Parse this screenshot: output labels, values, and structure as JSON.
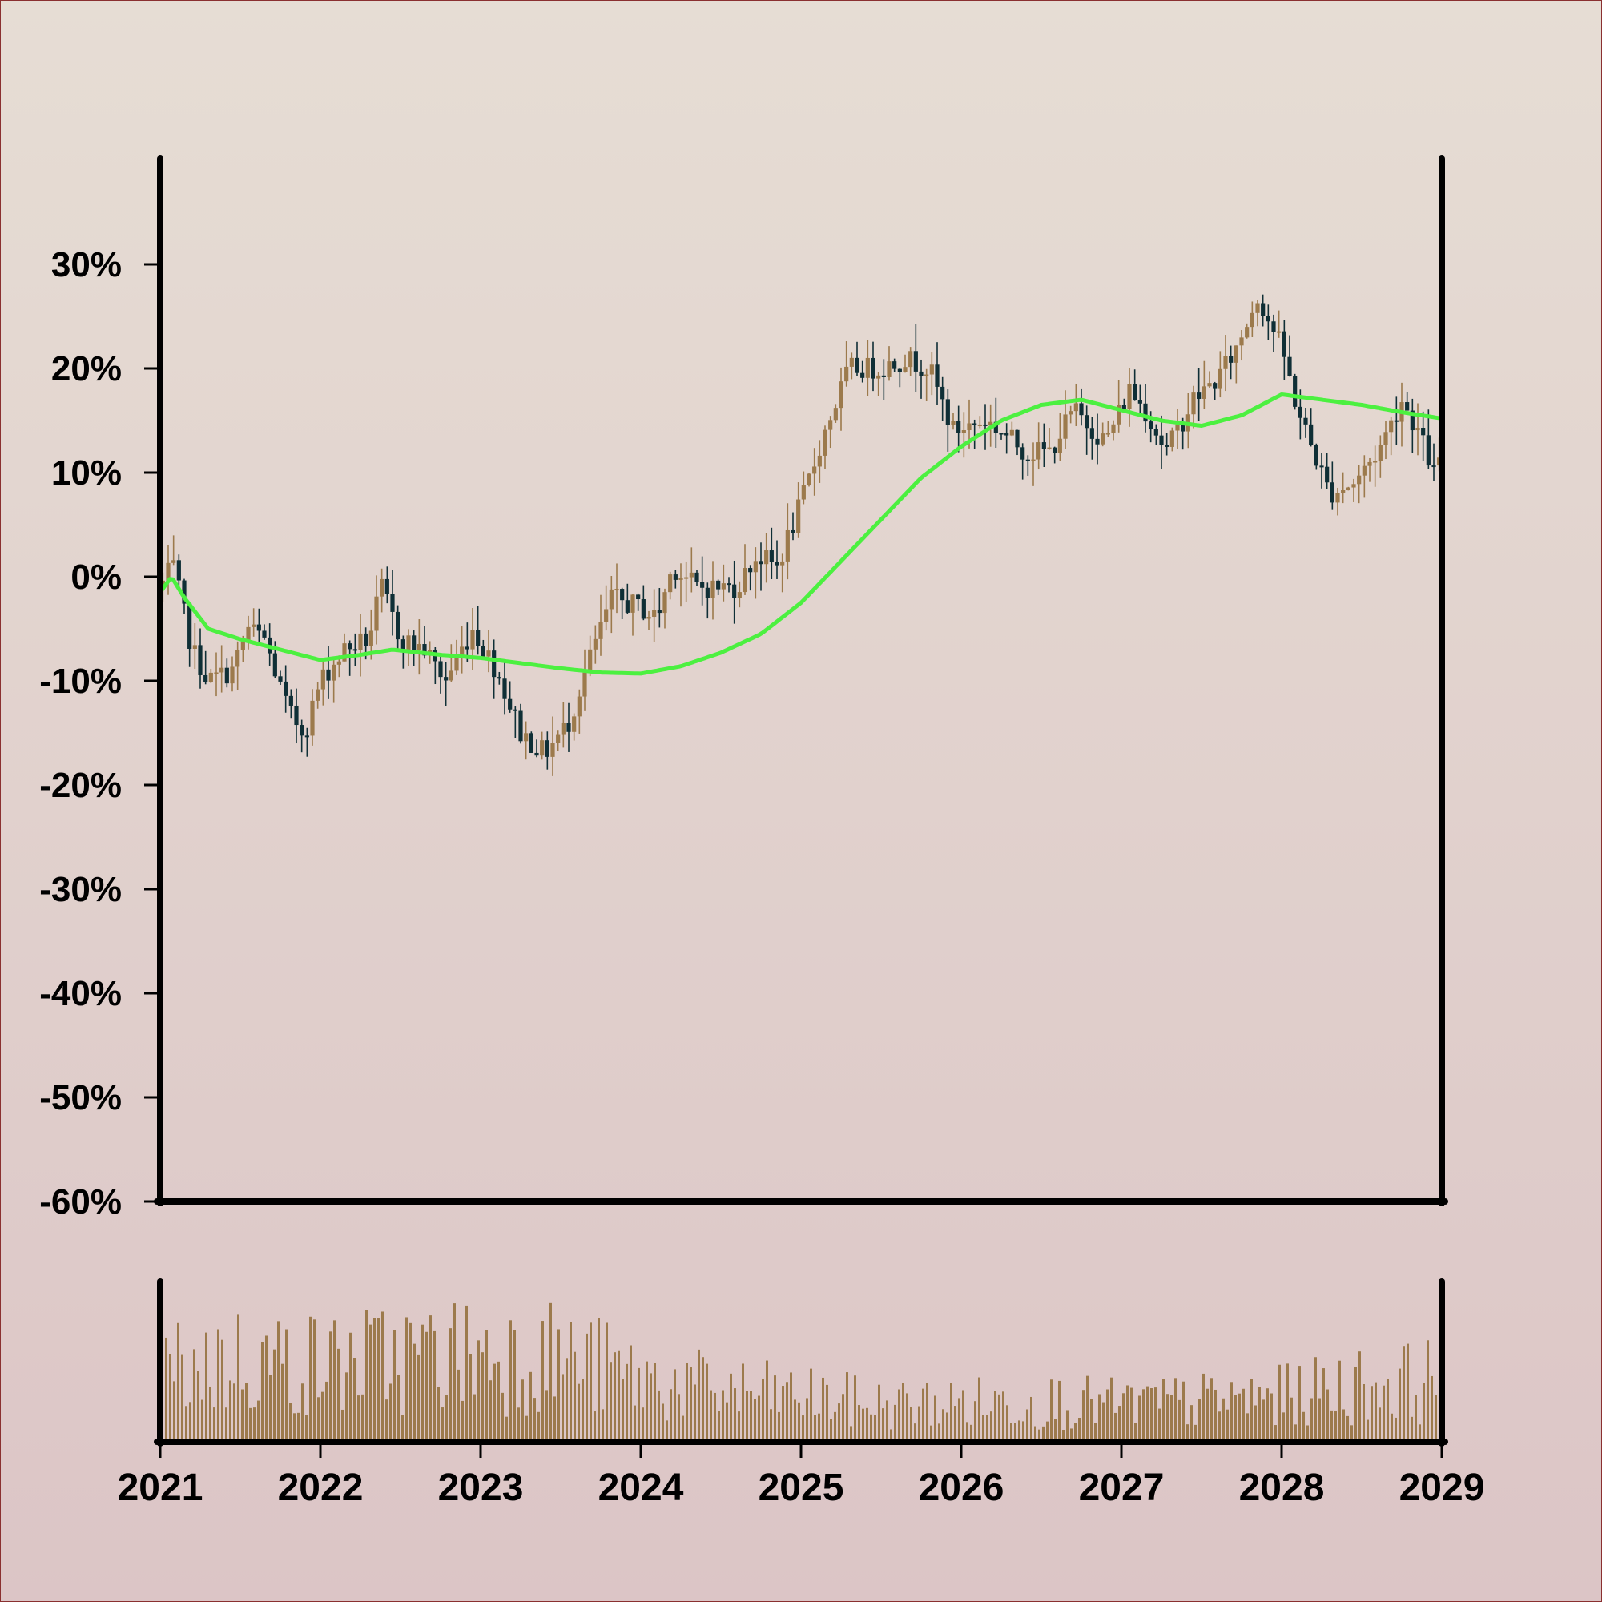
{
  "chart_data": [
    {
      "type": "candlestick",
      "panel": "price",
      "yticks": [
        "30%",
        "20%",
        "10%",
        "0%",
        "-10%",
        "-20%",
        "-30%",
        "-40%",
        "-50%",
        "-60%"
      ],
      "ytick_values": [
        30,
        20,
        10,
        0,
        -10,
        -20,
        -30,
        -40,
        -50,
        -60
      ],
      "ylim": [
        -60,
        40
      ],
      "xlim": [
        2021,
        2029
      ],
      "colors": {
        "up": "#9c7a4c",
        "down": "#0f2f36",
        "ma": "#4cf040",
        "axis": "#000000"
      },
      "close_path": [
        [
          2021.0,
          -1
        ],
        [
          2021.08,
          1
        ],
        [
          2021.2,
          -7
        ],
        [
          2021.3,
          -10
        ],
        [
          2021.45,
          -9
        ],
        [
          2021.55,
          -5
        ],
        [
          2021.65,
          -6
        ],
        [
          2021.8,
          -13
        ],
        [
          2021.9,
          -15
        ],
        [
          2022.0,
          -10
        ],
        [
          2022.15,
          -7
        ],
        [
          2022.3,
          -6
        ],
        [
          2022.38,
          -1
        ],
        [
          2022.5,
          -6
        ],
        [
          2022.65,
          -7
        ],
        [
          2022.78,
          -10
        ],
        [
          2022.95,
          -5
        ],
        [
          2023.1,
          -9
        ],
        [
          2023.25,
          -15
        ],
        [
          2023.4,
          -17
        ],
        [
          2023.55,
          -14
        ],
        [
          2023.7,
          -7
        ],
        [
          2023.82,
          -2
        ],
        [
          2024.0,
          -3
        ],
        [
          2024.1,
          -4
        ],
        [
          2024.2,
          1
        ],
        [
          2024.35,
          -1
        ],
        [
          2024.6,
          -1
        ],
        [
          2024.72,
          2
        ],
        [
          2024.85,
          1
        ],
        [
          2025.0,
          7
        ],
        [
          2025.15,
          14
        ],
        [
          2025.3,
          20
        ],
        [
          2025.5,
          20
        ],
        [
          2025.65,
          21
        ],
        [
          2025.8,
          20
        ],
        [
          2025.95,
          14
        ],
        [
          2026.15,
          15
        ],
        [
          2026.25,
          14
        ],
        [
          2026.4,
          12
        ],
        [
          2026.55,
          12
        ],
        [
          2026.7,
          16
        ],
        [
          2026.9,
          13
        ],
        [
          2027.05,
          18
        ],
        [
          2027.15,
          16
        ],
        [
          2027.28,
          12
        ],
        [
          2027.45,
          17
        ],
        [
          2027.6,
          19
        ],
        [
          2027.72,
          22
        ],
        [
          2027.85,
          27
        ],
        [
          2028.0,
          22
        ],
        [
          2028.1,
          16
        ],
        [
          2028.2,
          12
        ],
        [
          2028.3,
          8
        ],
        [
          2028.45,
          9
        ],
        [
          2028.6,
          12
        ],
        [
          2028.75,
          17
        ],
        [
          2028.85,
          14
        ],
        [
          2028.95,
          10
        ],
        [
          2029.0,
          11
        ]
      ],
      "ma_path": [
        [
          2021.0,
          -1.5
        ],
        [
          2021.07,
          0
        ],
        [
          2021.15,
          -2
        ],
        [
          2021.3,
          -5
        ],
        [
          2021.5,
          -6
        ],
        [
          2021.75,
          -7
        ],
        [
          2022.0,
          -8
        ],
        [
          2022.25,
          -7.5
        ],
        [
          2022.45,
          -7
        ],
        [
          2022.75,
          -7.5
        ],
        [
          2023.0,
          -7.8
        ],
        [
          2023.25,
          -8.3
        ],
        [
          2023.5,
          -8.8
        ],
        [
          2023.75,
          -9.2
        ],
        [
          2024.0,
          -9.3
        ],
        [
          2024.25,
          -8.6
        ],
        [
          2024.5,
          -7.3
        ],
        [
          2024.75,
          -5.5
        ],
        [
          2025.0,
          -2.5
        ],
        [
          2025.25,
          1.5
        ],
        [
          2025.5,
          5.5
        ],
        [
          2025.75,
          9.5
        ],
        [
          2026.0,
          12.5
        ],
        [
          2026.25,
          15
        ],
        [
          2026.5,
          16.5
        ],
        [
          2026.75,
          17
        ],
        [
          2027.0,
          16
        ],
        [
          2027.25,
          15
        ],
        [
          2027.5,
          14.5
        ],
        [
          2027.75,
          15.5
        ],
        [
          2028.0,
          17.5
        ],
        [
          2028.25,
          17
        ],
        [
          2028.5,
          16.5
        ],
        [
          2028.75,
          15.8
        ],
        [
          2029.0,
          15.2
        ]
      ]
    },
    {
      "type": "bar",
      "panel": "volume",
      "xticks": [
        "2021",
        "2022",
        "2023",
        "2024",
        "2025",
        "2026",
        "2027",
        "2028",
        "2029"
      ],
      "xtick_values": [
        2021,
        2022,
        2023,
        2024,
        2025,
        2026,
        2027,
        2028,
        2029
      ],
      "xlim": [
        2021,
        2029
      ],
      "color": "#9c7a4c",
      "envelope": [
        [
          2021.0,
          0.62
        ],
        [
          2021.5,
          0.72
        ],
        [
          2022.0,
          0.68
        ],
        [
          2022.5,
          0.74
        ],
        [
          2023.0,
          0.78
        ],
        [
          2023.5,
          0.75
        ],
        [
          2024.0,
          0.55
        ],
        [
          2024.5,
          0.45
        ],
        [
          2025.0,
          0.4
        ],
        [
          2025.5,
          0.33
        ],
        [
          2026.0,
          0.34
        ],
        [
          2026.5,
          0.36
        ],
        [
          2027.0,
          0.33
        ],
        [
          2027.5,
          0.36
        ],
        [
          2028.0,
          0.4
        ],
        [
          2028.5,
          0.5
        ],
        [
          2029.0,
          0.55
        ]
      ]
    }
  ]
}
